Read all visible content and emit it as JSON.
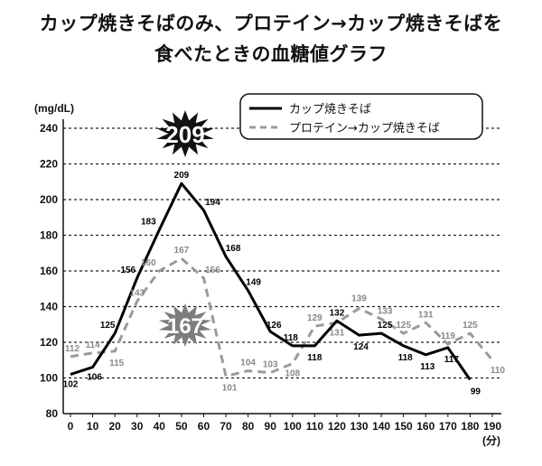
{
  "title_line1": "カップ焼きそばのみ、プロテイン→カップ焼きそばを",
  "title_line2": "食べたときの血糖値グラフ",
  "chart_data": {
    "type": "line",
    "title": "カップ焼きそばのみ、プロテイン→カップ焼きそばを食べたときの血糖値グラフ",
    "ylabel": "(mg/dL)",
    "xlabel": "(分)",
    "x": [
      0,
      10,
      20,
      30,
      40,
      50,
      60,
      70,
      80,
      90,
      100,
      110,
      120,
      130,
      140,
      150,
      160,
      170,
      180,
      190
    ],
    "xlim": [
      0,
      190
    ],
    "ylim": [
      80,
      240
    ],
    "yticks": [
      80,
      100,
      120,
      140,
      160,
      180,
      200,
      220,
      240
    ],
    "grid": "horizontal dashed",
    "legend_position": "top-right",
    "series": [
      {
        "name": "カップ焼きそば",
        "style": "solid",
        "color": "#000000",
        "x": [
          0,
          10,
          20,
          30,
          40,
          50,
          60,
          70,
          80,
          90,
          100,
          110,
          120,
          130,
          140,
          150,
          160,
          170,
          180
        ],
        "values": [
          102,
          106,
          125,
          156,
          183,
          209,
          194,
          168,
          149,
          126,
          118,
          118,
          132,
          124,
          125,
          118,
          113,
          117,
          99
        ]
      },
      {
        "name": "プロテイン→カップ焼きそば",
        "style": "dashed",
        "color": "#9a9a9a",
        "x": [
          0,
          10,
          20,
          30,
          40,
          50,
          60,
          70,
          80,
          90,
          100,
          110,
          120,
          130,
          140,
          150,
          160,
          170,
          180,
          190
        ],
        "values": [
          112,
          114,
          115,
          143,
          160,
          167,
          156,
          101,
          104,
          103,
          108,
          129,
          131,
          139,
          133,
          125,
          131,
          119,
          125,
          110
        ]
      }
    ],
    "peak_badges": [
      {
        "label": "209",
        "series": 0
      },
      {
        "label": "167",
        "series": 1
      }
    ]
  }
}
